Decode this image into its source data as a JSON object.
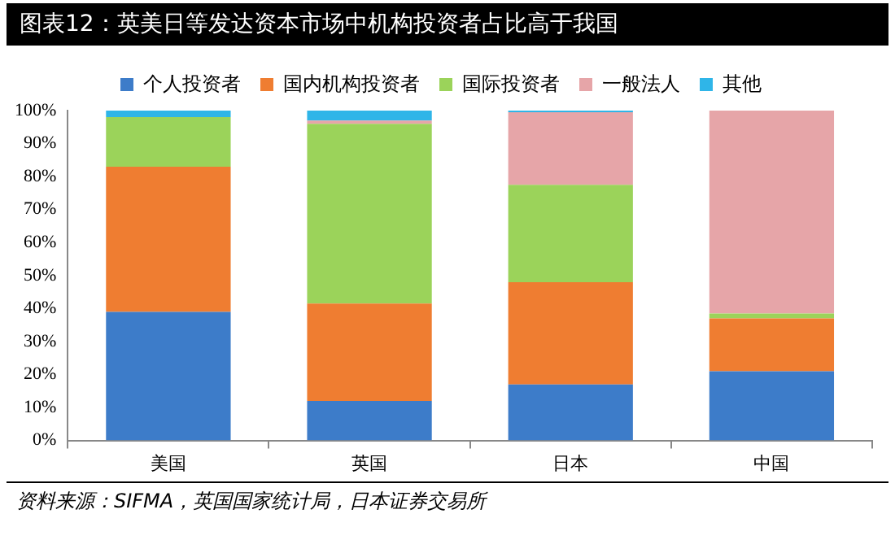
{
  "chart_data": {
    "type": "bar",
    "title": "图表12：英美日等发达资本市场中机构投资者占比高于我国",
    "categories": [
      "美国",
      "英国",
      "日本",
      "中国"
    ],
    "stacked": true,
    "series": [
      {
        "name": "个人投资者",
        "color": "#3d7cc9",
        "values": [
          39,
          12,
          17,
          21
        ]
      },
      {
        "name": "国内机构投资者",
        "color": "#ef7d31",
        "values": [
          44,
          29.5,
          31,
          16
        ]
      },
      {
        "name": "国际投资者",
        "color": "#9bd35a",
        "values": [
          15,
          54.5,
          29.5,
          1.5
        ]
      },
      {
        "name": "一般法人",
        "color": "#e6a5a8",
        "values": [
          0,
          1,
          22,
          61.5
        ]
      },
      {
        "name": "其他",
        "color": "#2fb5e8",
        "values": [
          2,
          3,
          0.5,
          0
        ]
      }
    ],
    "ylim": [
      0,
      100
    ],
    "yticks": [
      {
        "value": 0,
        "label": "0%"
      },
      {
        "value": 10,
        "label": "10%"
      },
      {
        "value": 20,
        "label": "20%"
      },
      {
        "value": 30,
        "label": "30%"
      },
      {
        "value": 40,
        "label": "40%"
      },
      {
        "value": 50,
        "label": "50%"
      },
      {
        "value": 60,
        "label": "60%"
      },
      {
        "value": 70,
        "label": "70%"
      },
      {
        "value": 80,
        "label": "80%"
      },
      {
        "value": 90,
        "label": "90%"
      },
      {
        "value": 100,
        "label": "100%"
      }
    ],
    "grid": false,
    "legend": "top",
    "annotations": [
      "资料来源：SIFMA，英国国家统计局，日本证券交易所"
    ]
  }
}
